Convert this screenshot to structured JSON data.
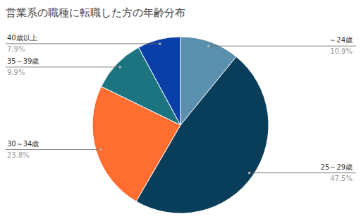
{
  "chart_data": {
    "type": "pie",
    "title": "営業系の職種に転職した方の年齢分布",
    "categories": [
      "～24歳",
      "25～29歳",
      "30～34歳",
      "35～39歳",
      "40歳以上"
    ],
    "values": [
      10.9,
      47.5,
      23.8,
      9.9,
      7.9
    ],
    "value_labels": [
      "10.9%",
      "47.5%",
      "23.8%",
      "9.9%",
      "7.9%"
    ],
    "colors": [
      "#5a8fad",
      "#093e5a",
      "#ff6d31",
      "#1c7480",
      "#0b3fa8"
    ],
    "data_labels": true
  }
}
